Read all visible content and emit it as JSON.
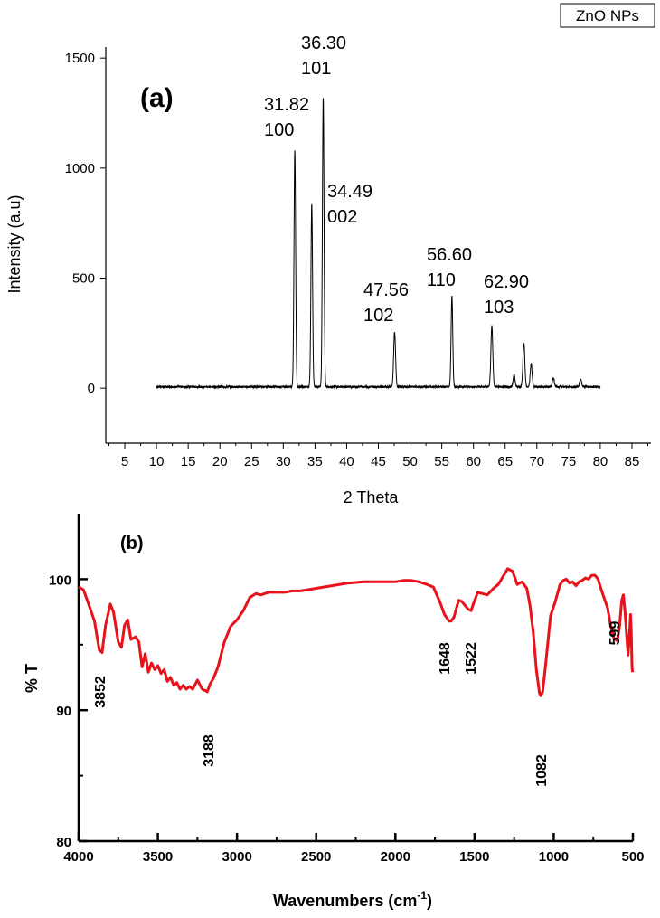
{
  "legend_box": "ZnO NPs",
  "chart_data": [
    {
      "type": "line",
      "panel_label": "(a)",
      "xlabel": "2 Theta",
      "ylabel": "Intensity (a.u)",
      "xlim": [
        2,
        88
      ],
      "ylim": [
        -250,
        1550
      ],
      "xticks": [
        5,
        10,
        15,
        20,
        25,
        30,
        35,
        40,
        45,
        50,
        55,
        60,
        65,
        70,
        75,
        80,
        85
      ],
      "yticks": [
        0,
        500,
        1000,
        1500
      ],
      "data_range": [
        10,
        80
      ],
      "peaks": [
        {
          "x": 31.82,
          "y": 1075,
          "label_pos": "31.82",
          "label_hkl": "100"
        },
        {
          "x": 34.49,
          "y": 830,
          "label_pos": "34.49",
          "label_hkl": "002"
        },
        {
          "x": 36.3,
          "y": 1315,
          "label_pos": "36.30",
          "label_hkl": "101"
        },
        {
          "x": 47.56,
          "y": 250,
          "label_pos": "47.56",
          "label_hkl": "102"
        },
        {
          "x": 56.6,
          "y": 410,
          "label_pos": "56.60",
          "label_hkl": "110"
        },
        {
          "x": 62.9,
          "y": 275,
          "label_pos": "62.90",
          "label_hkl": "103"
        },
        {
          "x": 66.4,
          "y": 55
        },
        {
          "x": 67.95,
          "y": 200
        },
        {
          "x": 69.1,
          "y": 105
        },
        {
          "x": 72.6,
          "y": 40
        },
        {
          "x": 76.9,
          "y": 35
        }
      ]
    },
    {
      "type": "line",
      "panel_label": "(b)",
      "xlabel_main": "Wavenumbers (cm",
      "xlabel_sup": "-1",
      "xlabel_end": ")",
      "ylabel": "% T",
      "xlim": [
        4000,
        500
      ],
      "ylim": [
        80,
        105
      ],
      "xticks": [
        4000,
        3500,
        3000,
        2500,
        2000,
        1500,
        1000,
        500
      ],
      "yticks": [
        80,
        90,
        100
      ],
      "color": "#e8121b",
      "annotations": [
        {
          "x": 3852,
          "label": "3852"
        },
        {
          "x": 3188,
          "label": "3188"
        },
        {
          "x": 1648,
          "label": "1648"
        },
        {
          "x": 1522,
          "label": "1522"
        },
        {
          "x": 1082,
          "label": "1082"
        },
        {
          "x": 599,
          "label": "599"
        }
      ],
      "points": [
        [
          4000,
          99.4
        ],
        [
          3970,
          99.2
        ],
        [
          3940,
          98.2
        ],
        [
          3900,
          96.8
        ],
        [
          3870,
          94.6
        ],
        [
          3852,
          94.4
        ],
        [
          3830,
          96.5
        ],
        [
          3800,
          98.1
        ],
        [
          3780,
          97.5
        ],
        [
          3750,
          95.2
        ],
        [
          3730,
          94.8
        ],
        [
          3710,
          96.5
        ],
        [
          3690,
          96.9
        ],
        [
          3670,
          95.4
        ],
        [
          3640,
          95.6
        ],
        [
          3620,
          95.2
        ],
        [
          3600,
          93.3
        ],
        [
          3580,
          94.3
        ],
        [
          3560,
          92.9
        ],
        [
          3540,
          93.6
        ],
        [
          3520,
          93.1
        ],
        [
          3500,
          93.4
        ],
        [
          3480,
          92.8
        ],
        [
          3460,
          93.1
        ],
        [
          3440,
          92.2
        ],
        [
          3420,
          92.5
        ],
        [
          3400,
          91.9
        ],
        [
          3380,
          92.1
        ],
        [
          3360,
          91.6
        ],
        [
          3340,
          91.9
        ],
        [
          3320,
          91.6
        ],
        [
          3300,
          91.8
        ],
        [
          3280,
          91.6
        ],
        [
          3250,
          92.3
        ],
        [
          3220,
          91.6
        ],
        [
          3200,
          91.5
        ],
        [
          3188,
          91.4
        ],
        [
          3170,
          92.0
        ],
        [
          3150,
          92.4
        ],
        [
          3120,
          93.3
        ],
        [
          3080,
          95.2
        ],
        [
          3040,
          96.4
        ],
        [
          3000,
          96.9
        ],
        [
          2960,
          97.6
        ],
        [
          2920,
          98.6
        ],
        [
          2880,
          98.9
        ],
        [
          2850,
          98.8
        ],
        [
          2800,
          99.0
        ],
        [
          2750,
          99.0
        ],
        [
          2700,
          99.0
        ],
        [
          2650,
          99.1
        ],
        [
          2600,
          99.1
        ],
        [
          2550,
          99.2
        ],
        [
          2500,
          99.3
        ],
        [
          2400,
          99.5
        ],
        [
          2300,
          99.7
        ],
        [
          2200,
          99.8
        ],
        [
          2100,
          99.8
        ],
        [
          2000,
          99.8
        ],
        [
          1950,
          99.9
        ],
        [
          1900,
          99.9
        ],
        [
          1850,
          99.8
        ],
        [
          1800,
          99.6
        ],
        [
          1760,
          99.4
        ],
        [
          1720,
          98.3
        ],
        [
          1690,
          97.3
        ],
        [
          1660,
          96.8
        ],
        [
          1648,
          96.8
        ],
        [
          1630,
          97.1
        ],
        [
          1600,
          98.4
        ],
        [
          1580,
          98.3
        ],
        [
          1560,
          98.0
        ],
        [
          1540,
          97.7
        ],
        [
          1522,
          97.6
        ],
        [
          1505,
          98.2
        ],
        [
          1480,
          99.0
        ],
        [
          1450,
          98.9
        ],
        [
          1420,
          98.8
        ],
        [
          1380,
          99.3
        ],
        [
          1350,
          99.6
        ],
        [
          1310,
          100.4
        ],
        [
          1290,
          100.8
        ],
        [
          1260,
          100.6
        ],
        [
          1230,
          99.6
        ],
        [
          1200,
          99.8
        ],
        [
          1170,
          99.3
        ],
        [
          1150,
          98.0
        ],
        [
          1130,
          96.0
        ],
        [
          1110,
          93.1
        ],
        [
          1090,
          91.3
        ],
        [
          1082,
          91.1
        ],
        [
          1070,
          91.4
        ],
        [
          1050,
          93.6
        ],
        [
          1020,
          97.2
        ],
        [
          990,
          98.3
        ],
        [
          960,
          99.6
        ],
        [
          940,
          99.9
        ],
        [
          920,
          100.0
        ],
        [
          900,
          99.7
        ],
        [
          880,
          99.8
        ],
        [
          860,
          99.5
        ],
        [
          840,
          99.8
        ],
        [
          820,
          99.9
        ],
        [
          800,
          100.1
        ],
        [
          780,
          100.0
        ],
        [
          760,
          100.3
        ],
        [
          740,
          100.3
        ],
        [
          720,
          100.0
        ],
        [
          700,
          99.2
        ],
        [
          680,
          98.5
        ],
        [
          660,
          97.8
        ],
        [
          640,
          96.4
        ],
        [
          620,
          95.5
        ],
        [
          599,
          95.3
        ],
        [
          585,
          96.3
        ],
        [
          570,
          98.4
        ],
        [
          560,
          98.8
        ],
        [
          550,
          97.6
        ],
        [
          540,
          95.8
        ],
        [
          530,
          94.2
        ],
        [
          522,
          95.6
        ],
        [
          515,
          97.3
        ],
        [
          510,
          96.0
        ],
        [
          505,
          93.2
        ],
        [
          502,
          92.9
        ]
      ]
    }
  ]
}
